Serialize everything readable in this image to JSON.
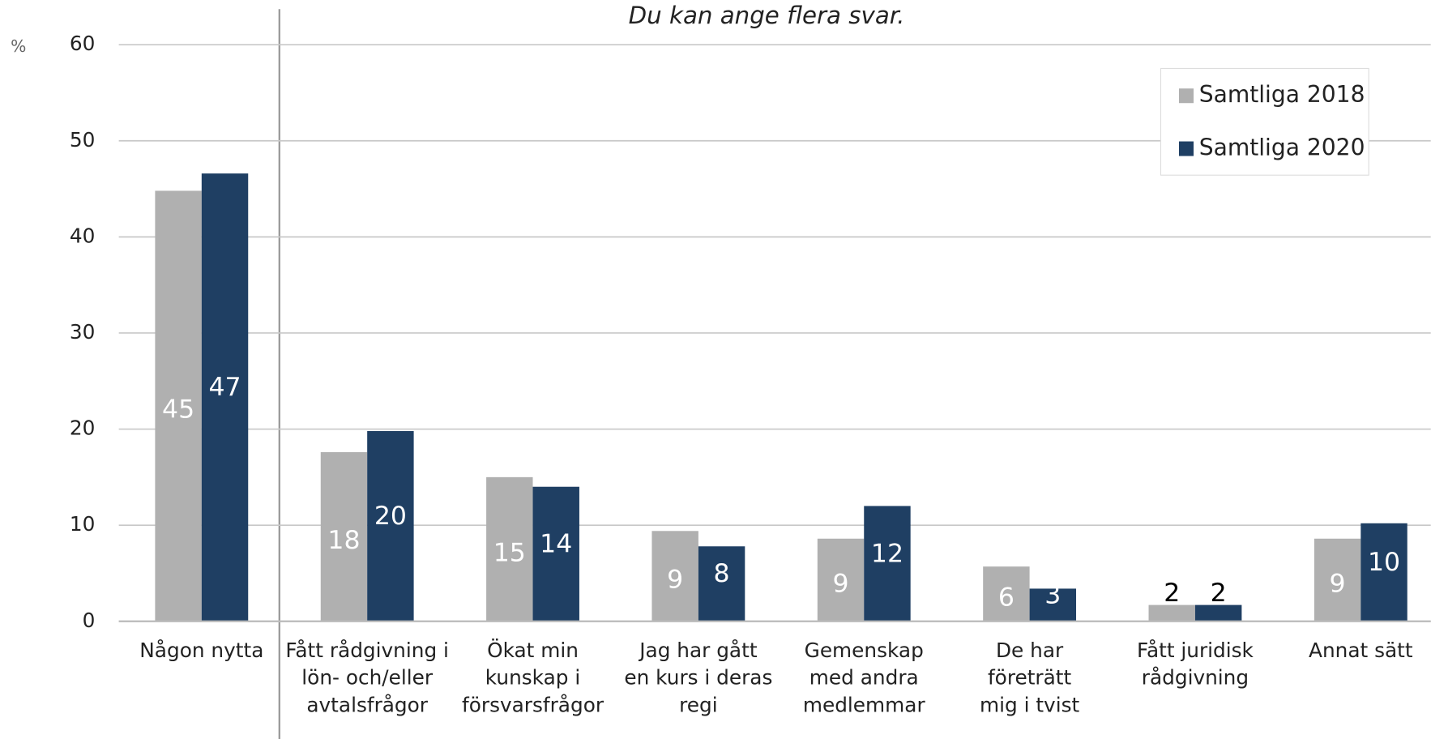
{
  "chart_data": {
    "type": "bar",
    "subtitle": "Du kan ange flera svar.",
    "y_label": "%",
    "categories": [
      "Någon nytta",
      "Fått rådgivning i\nlön- och/eller\navtalsfrågor",
      "Ökat min\nkunskap i\nförsvarsfrågor",
      "Jag har gått\nen kurs i deras\nregi",
      "Gemenskap\nmed andra\nmedlemmar",
      "De har\nföreträtt\nmig i tvist",
      "Fått juridisk\nrådgivning",
      "Annat sätt"
    ],
    "series": [
      {
        "name": "Samtliga 2018",
        "color": "#b0b0b0",
        "values": [
          44.8,
          17.6,
          15,
          9.4,
          8.6,
          5.7,
          1.7,
          8.6
        ],
        "value_labels": [
          "45",
          "18",
          "15",
          "9",
          "9",
          "6",
          "2",
          "9"
        ]
      },
      {
        "name": "Samtliga 2020",
        "color": "#1f3f63",
        "values": [
          46.6,
          19.8,
          14,
          7.8,
          12,
          3.4,
          1.7,
          10.2
        ],
        "value_labels": [
          "47",
          "20",
          "14",
          "8",
          "12",
          "3",
          "2",
          "10"
        ]
      }
    ],
    "ylim": [
      0,
      60
    ],
    "yticks": [
      0,
      10,
      20,
      30,
      40,
      50,
      60
    ],
    "grid": true,
    "legend": "top-right"
  }
}
